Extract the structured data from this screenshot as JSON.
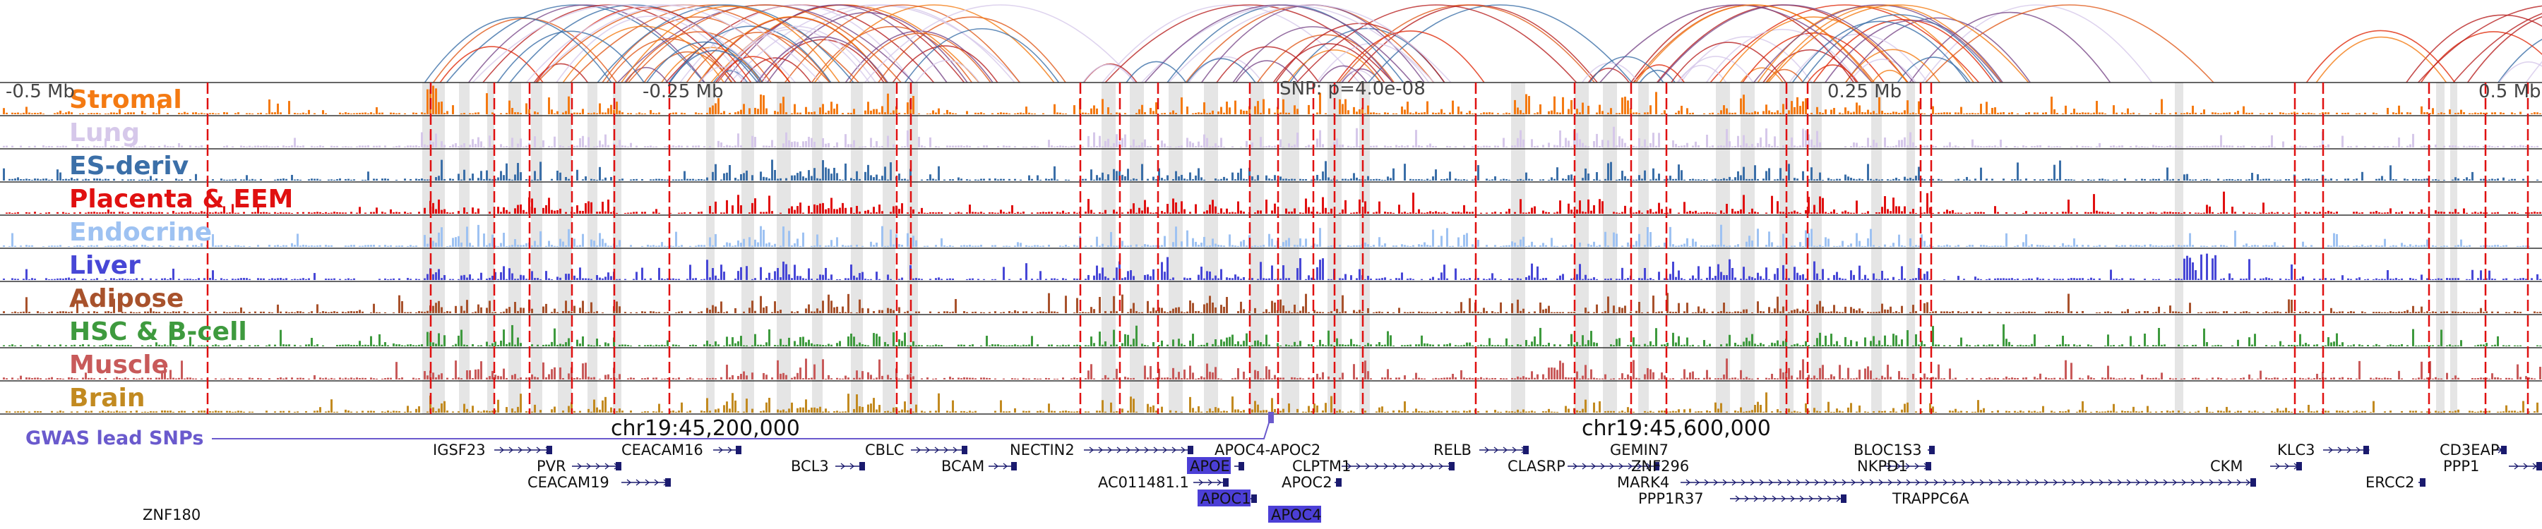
{
  "figure": {
    "coord_labels": [
      "-0.5 Mb",
      "-0.25 Mb",
      "0.25 Mb",
      "0.5 Mb"
    ],
    "snp_annotation": "SNP: p=4.0e-08",
    "chr_labels": [
      "chr19:45,200,000",
      "chr19:45,600,000"
    ],
    "gwas_label": "GWAS lead SNPs"
  },
  "tracks": [
    {
      "name": "Stromal",
      "color": "#f47a12"
    },
    {
      "name": "Lung",
      "color": "#d6c8ea"
    },
    {
      "name": "ES-deriv",
      "color": "#3b6fa8"
    },
    {
      "name": "Placenta & EEM",
      "color": "#e01010"
    },
    {
      "name": "Endocrine",
      "color": "#9ec2f2"
    },
    {
      "name": "Liver",
      "color": "#4747d6"
    },
    {
      "name": "Adipose",
      "color": "#a8522c"
    },
    {
      "name": "HSC & B-cell",
      "color": "#3e9a3e"
    },
    {
      "name": "Muscle",
      "color": "#c85a5a"
    },
    {
      "name": "Brain",
      "color": "#c28a20"
    }
  ],
  "genes": [
    {
      "name": "IGSF23",
      "row": 0
    },
    {
      "name": "CEACAM16",
      "row": 0
    },
    {
      "name": "CBLC",
      "row": 0
    },
    {
      "name": "NECTIN2",
      "row": 0
    },
    {
      "name": "APOC4-APOC2",
      "row": 0
    },
    {
      "name": "RELB",
      "row": 0
    },
    {
      "name": "GEMIN7",
      "row": 0
    },
    {
      "name": "BLOC1S3",
      "row": 0
    },
    {
      "name": "KLC3",
      "row": 0
    },
    {
      "name": "CD3EAP",
      "row": 0
    },
    {
      "name": "PVR",
      "row": 1
    },
    {
      "name": "BCL3",
      "row": 1
    },
    {
      "name": "BCAM",
      "row": 1
    },
    {
      "name": "APOE",
      "row": 1
    },
    {
      "name": "CLPTM1",
      "row": 1
    },
    {
      "name": "CLASRP",
      "row": 1
    },
    {
      "name": "ZNF296",
      "row": 1
    },
    {
      "name": "NKPD1",
      "row": 1
    },
    {
      "name": "CKM",
      "row": 1
    },
    {
      "name": "PPP1",
      "row": 1
    },
    {
      "name": "CEACAM19",
      "row": 2
    },
    {
      "name": "AC011481.1",
      "row": 2
    },
    {
      "name": "APOC2",
      "row": 2
    },
    {
      "name": "MARK4",
      "row": 2
    },
    {
      "name": "ERCC2",
      "row": 2
    },
    {
      "name": "APOC1",
      "row": 3
    },
    {
      "name": "PPP1R37",
      "row": 3
    },
    {
      "name": "TRAPPC6A",
      "row": 3
    },
    {
      "name": "APOC4",
      "row": 4
    },
    {
      "name": "ZNF180",
      "row": 4
    }
  ]
}
